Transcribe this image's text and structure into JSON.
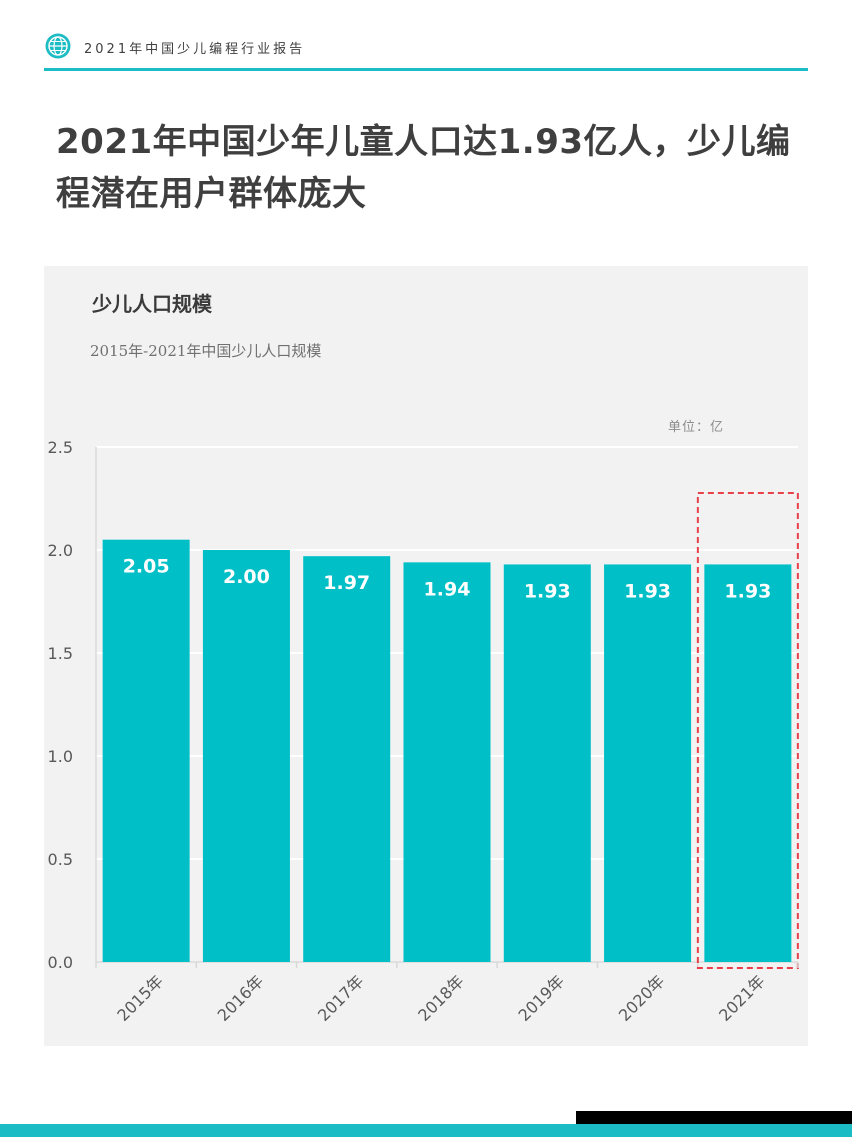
{
  "header": {
    "title": "2021年中国少儿编程行业报告",
    "logo_icon": "globe-icon"
  },
  "headline": "2021年中国少年儿童人口达1.93亿人，少儿编程潜在用户群体庞大",
  "panel": {
    "title": "少儿人口规模",
    "subtitle": "2015年-2021年中国少儿人口规模",
    "unit": "单位：亿"
  },
  "colors": {
    "accent": "#1cbcc4",
    "bar": "#00bfc6",
    "highlight_box": "#e8414b",
    "footer_dark": "#000000"
  },
  "chart_data": {
    "type": "bar",
    "categories": [
      "2015年",
      "2016年",
      "2017年",
      "2018年",
      "2019年",
      "2020年",
      "2021年"
    ],
    "values": [
      2.05,
      2.0,
      1.97,
      1.94,
      1.93,
      1.93,
      1.93
    ],
    "value_labels": [
      "2.05",
      "2.00",
      "1.97",
      "1.94",
      "1.93",
      "1.93",
      "1.93"
    ],
    "ylim": [
      0,
      2.5
    ],
    "yticks": [
      0.0,
      0.5,
      1.0,
      1.5,
      2.0,
      2.5
    ],
    "ytick_labels": [
      "0.0",
      "0.5",
      "1.0",
      "1.5",
      "2.0",
      "2.5"
    ],
    "grid": true,
    "highlight_category": "2021年",
    "title": "",
    "xlabel": "",
    "ylabel": ""
  }
}
